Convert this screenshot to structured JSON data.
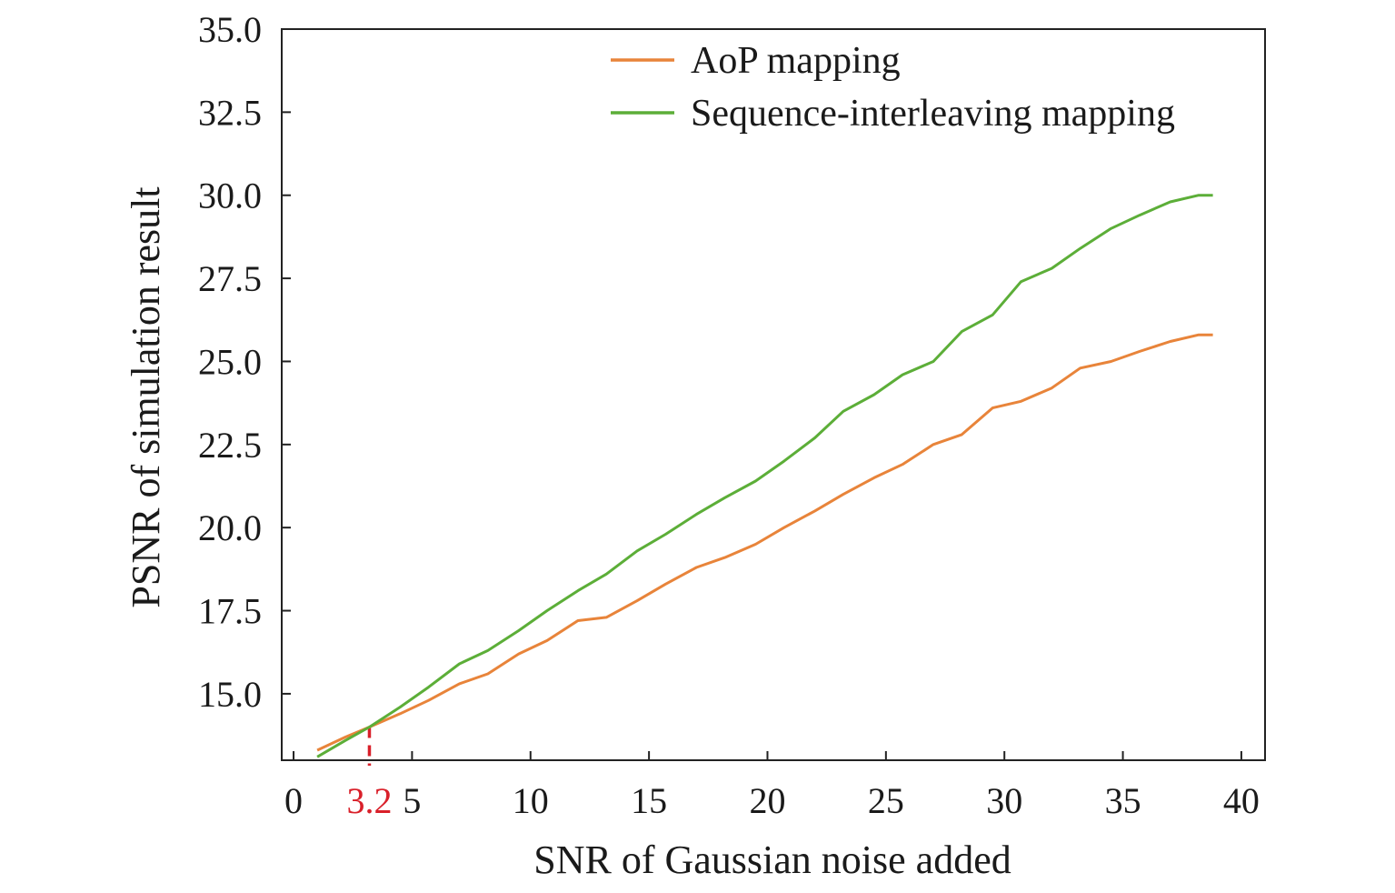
{
  "chart_data": {
    "type": "line",
    "title": "",
    "xlabel": "SNR of Gaussian noise added",
    "ylabel": "PSNR of simulation result",
    "xlim": [
      -0.5,
      41
    ],
    "ylim": [
      13.0,
      35.0
    ],
    "xticks": [
      0,
      5,
      10,
      15,
      20,
      25,
      30,
      35,
      40
    ],
    "yticks": [
      15.0,
      17.5,
      20.0,
      22.5,
      25.0,
      27.5,
      30.0,
      32.5,
      35.0
    ],
    "ytick_labels": [
      "15.0",
      "17.5",
      "20.0",
      "22.5",
      "25.0",
      "27.5",
      "30.0",
      "32.5",
      "35.0"
    ],
    "legend_position": "top-right",
    "grid": false,
    "annotation": {
      "x": 3.2,
      "label": "3.2",
      "color": "#d9202a",
      "style": "dashed"
    },
    "series": [
      {
        "name": "AoP mapping",
        "color": "#e8843a",
        "x": [
          1.0,
          2.2,
          3.2,
          4.5,
          5.7,
          7.0,
          8.2,
          9.5,
          10.7,
          12.0,
          13.2,
          14.5,
          15.7,
          17.0,
          18.2,
          19.5,
          20.7,
          22.0,
          23.2,
          24.5,
          25.7,
          27.0,
          28.2,
          29.5,
          30.7,
          32.0,
          33.2,
          34.5,
          35.7,
          37.0,
          38.2,
          38.8
        ],
        "values": [
          13.3,
          13.7,
          14.0,
          14.4,
          14.8,
          15.3,
          15.6,
          16.2,
          16.6,
          17.2,
          17.3,
          17.8,
          18.3,
          18.8,
          19.1,
          19.5,
          20.0,
          20.5,
          21.0,
          21.5,
          21.9,
          22.5,
          22.8,
          23.6,
          23.8,
          24.2,
          24.8,
          25.0,
          25.3,
          25.6,
          25.8,
          25.8
        ]
      },
      {
        "name": "Sequence-interleaving mapping",
        "color": "#5cae38",
        "x": [
          1.0,
          2.2,
          3.2,
          4.5,
          5.7,
          7.0,
          8.2,
          9.5,
          10.7,
          12.0,
          13.2,
          14.5,
          15.7,
          17.0,
          18.2,
          19.5,
          20.7,
          22.0,
          23.2,
          24.5,
          25.7,
          27.0,
          28.2,
          29.5,
          30.7,
          32.0,
          33.2,
          34.5,
          35.7,
          37.0,
          38.2,
          38.8
        ],
        "values": [
          13.1,
          13.6,
          14.0,
          14.6,
          15.2,
          15.9,
          16.3,
          16.9,
          17.5,
          18.1,
          18.6,
          19.3,
          19.8,
          20.4,
          20.9,
          21.4,
          22.0,
          22.7,
          23.5,
          24.0,
          24.6,
          25.0,
          25.9,
          26.4,
          27.4,
          27.8,
          28.4,
          29.0,
          29.4,
          29.8,
          30.0,
          30.0
        ]
      }
    ]
  }
}
